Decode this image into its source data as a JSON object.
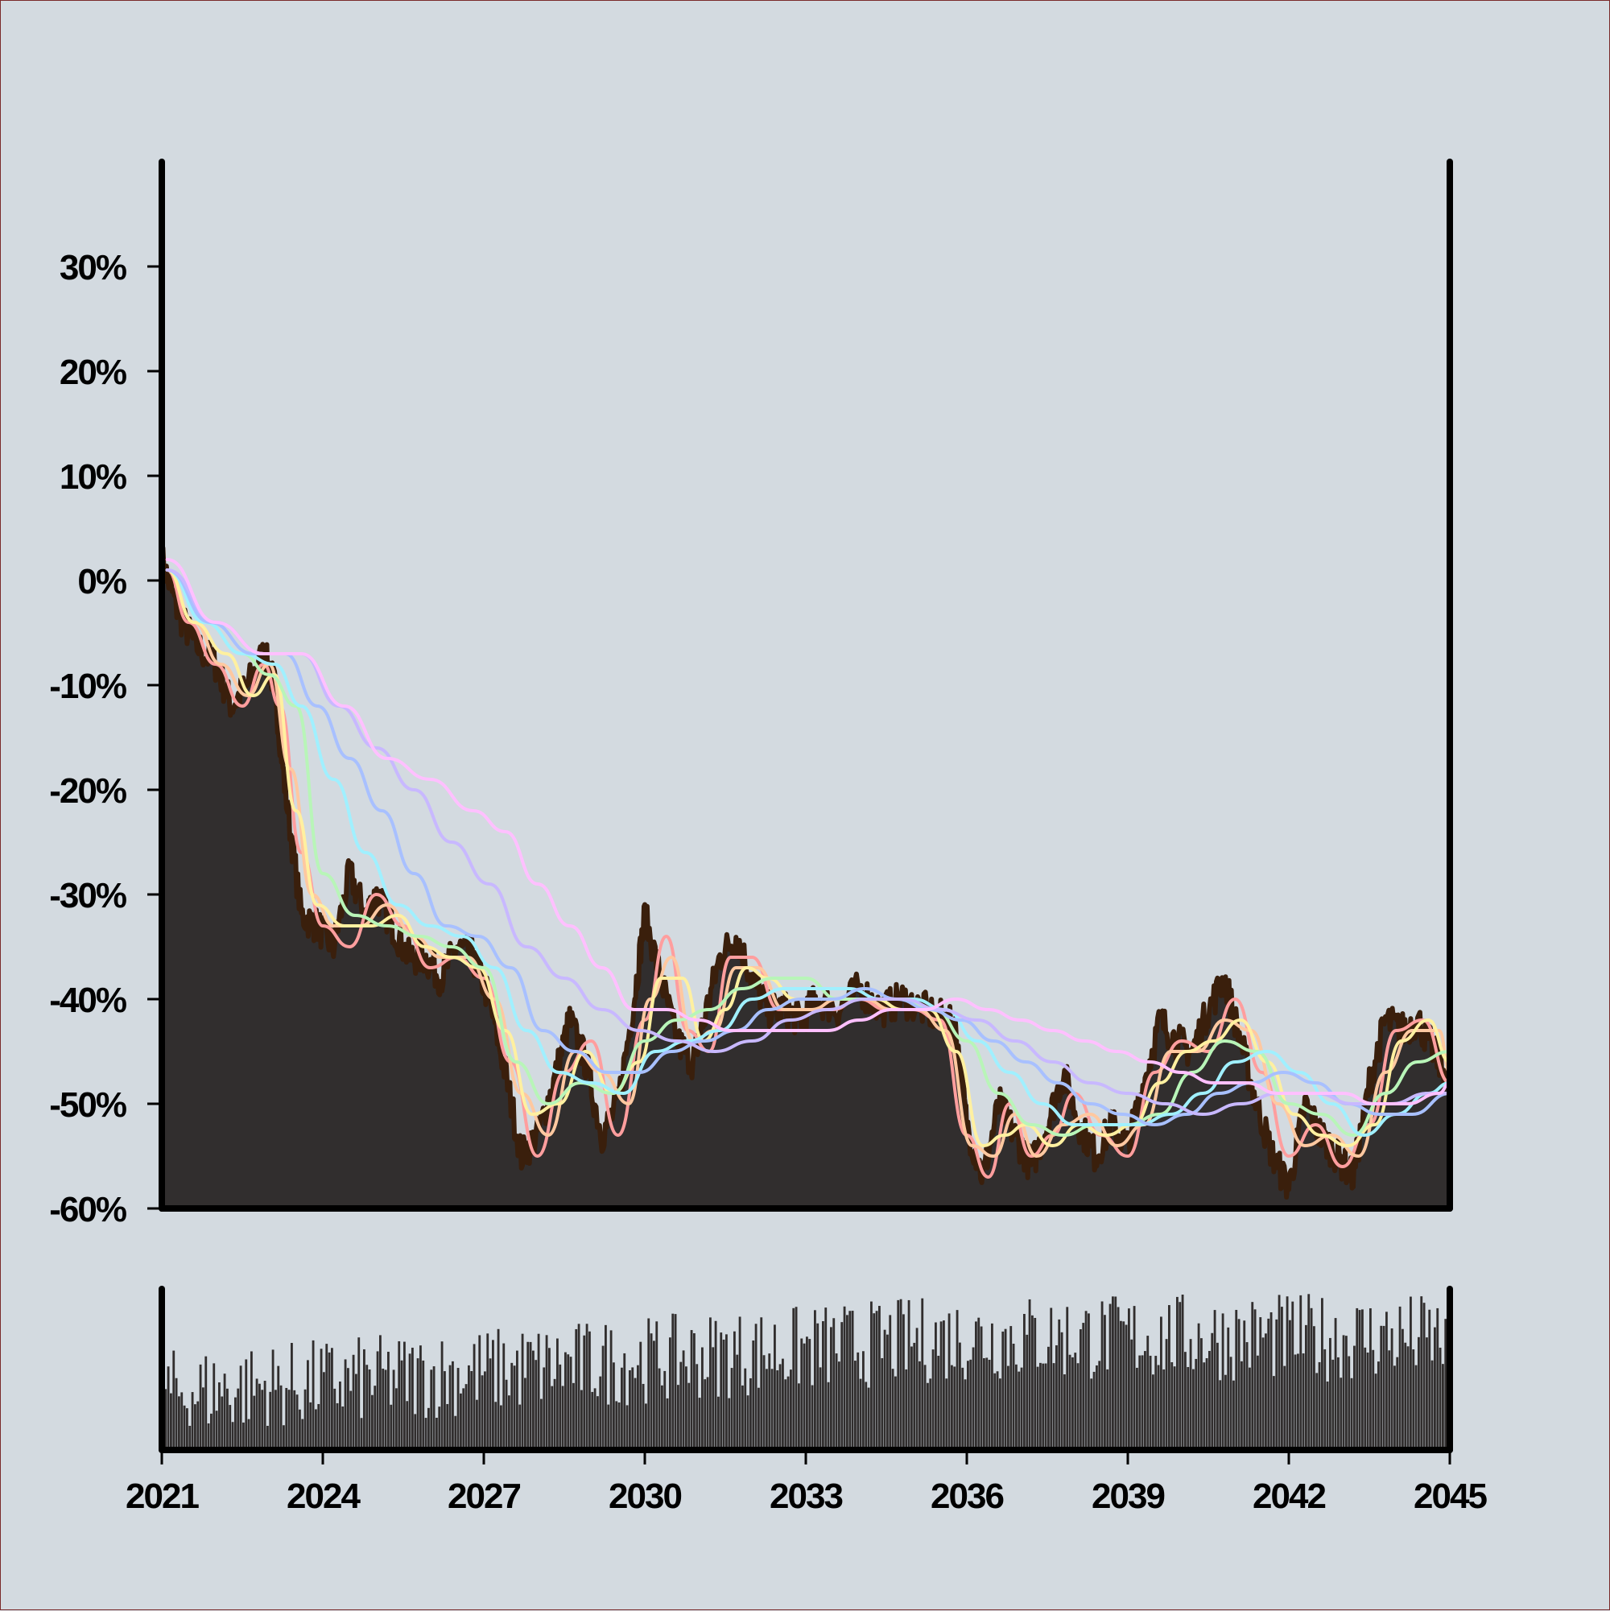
{
  "chart_data": {
    "type": "area",
    "background_color": "#d3dae0",
    "area_color": "#312e2e",
    "outline_color": "#3a1f0c",
    "volume_color": "#312e2e",
    "x_range": [
      2021,
      2045
    ],
    "y_range": [
      -0.6,
      0.4
    ],
    "y_ticks": [
      {
        "value": 0.3,
        "label": "30%"
      },
      {
        "value": 0.2,
        "label": "20%"
      },
      {
        "value": 0.1,
        "label": "10%"
      },
      {
        "value": 0.0,
        "label": "0%"
      },
      {
        "value": -0.1,
        "label": "-10%"
      },
      {
        "value": -0.2,
        "label": "-20%"
      },
      {
        "value": -0.3,
        "label": "-30%"
      },
      {
        "value": -0.4,
        "label": "-40%"
      },
      {
        "value": -0.5,
        "label": "-50%"
      },
      {
        "value": -0.6,
        "label": "-60%"
      }
    ],
    "x_ticks": [
      {
        "value": 2021,
        "label": "2021"
      },
      {
        "value": 2024,
        "label": "2024"
      },
      {
        "value": 2027,
        "label": "2027"
      },
      {
        "value": 2030,
        "label": "2030"
      },
      {
        "value": 2033,
        "label": "2033"
      },
      {
        "value": 2036,
        "label": "2036"
      },
      {
        "value": 2039,
        "label": "2039"
      },
      {
        "value": 2042,
        "label": "2042"
      },
      {
        "value": 2045,
        "label": "2045"
      }
    ],
    "drawdown": {
      "x": [
        2021.0,
        2021.3,
        2021.6,
        2022.0,
        2022.3,
        2022.6,
        2022.9,
        2023.1,
        2023.3,
        2023.6,
        2023.9,
        2024.2,
        2024.5,
        2024.8,
        2025.0,
        2025.3,
        2025.6,
        2025.9,
        2026.2,
        2026.5,
        2026.8,
        2027.1,
        2027.4,
        2027.7,
        2028.0,
        2028.3,
        2028.6,
        2028.9,
        2029.2,
        2029.5,
        2029.8,
        2030.0,
        2030.3,
        2030.6,
        2030.9,
        2031.1,
        2031.4,
        2031.7,
        2032.0,
        2032.3,
        2032.6,
        2032.9,
        2033.2,
        2033.6,
        2034.0,
        2034.4,
        2034.8,
        2035.2,
        2035.6,
        2035.8,
        2036.0,
        2036.3,
        2036.6,
        2036.9,
        2037.2,
        2037.5,
        2037.8,
        2038.1,
        2038.4,
        2038.7,
        2039.0,
        2039.3,
        2039.6,
        2039.9,
        2040.2,
        2040.5,
        2040.8,
        2041.1,
        2041.4,
        2041.7,
        2042.0,
        2042.3,
        2042.6,
        2042.9,
        2043.2,
        2043.5,
        2043.8,
        2044.1,
        2044.4,
        2044.7,
        2045.0
      ],
      "y": [
        0.02,
        -0.03,
        -0.06,
        -0.08,
        -0.12,
        -0.1,
        -0.07,
        -0.1,
        -0.2,
        -0.32,
        -0.33,
        -0.35,
        -0.28,
        -0.32,
        -0.3,
        -0.33,
        -0.36,
        -0.36,
        -0.38,
        -0.35,
        -0.36,
        -0.4,
        -0.47,
        -0.55,
        -0.53,
        -0.48,
        -0.42,
        -0.46,
        -0.53,
        -0.5,
        -0.4,
        -0.32,
        -0.38,
        -0.44,
        -0.46,
        -0.42,
        -0.36,
        -0.34,
        -0.38,
        -0.41,
        -0.41,
        -0.42,
        -0.4,
        -0.41,
        -0.39,
        -0.41,
        -0.4,
        -0.41,
        -0.42,
        -0.43,
        -0.52,
        -0.57,
        -0.5,
        -0.53,
        -0.56,
        -0.52,
        -0.47,
        -0.52,
        -0.55,
        -0.52,
        -0.54,
        -0.48,
        -0.42,
        -0.44,
        -0.45,
        -0.41,
        -0.38,
        -0.44,
        -0.5,
        -0.55,
        -0.58,
        -0.5,
        -0.53,
        -0.55,
        -0.57,
        -0.48,
        -0.42,
        -0.43,
        -0.42,
        -0.45,
        -0.48
      ]
    },
    "moving_averages": [
      {
        "color": "#ff9e9e",
        "x": [
          2021.1,
          2021.5,
          2022.0,
          2022.5,
          2022.9,
          2023.2,
          2023.6,
          2024.0,
          2024.5,
          2025.0,
          2025.5,
          2026.0,
          2026.5,
          2027.0,
          2027.5,
          2028.0,
          2028.5,
          2029.0,
          2029.5,
          2030.0,
          2030.4,
          2030.8,
          2031.2,
          2031.6,
          2032.0,
          2032.5,
          2033.0,
          2033.5,
          2034.0,
          2034.5,
          2035.0,
          2035.5,
          2036.0,
          2036.4,
          2036.8,
          2037.2,
          2037.6,
          2038.0,
          2038.5,
          2039.0,
          2039.5,
          2040.0,
          2040.5,
          2041.0,
          2041.5,
          2042.0,
          2042.5,
          2043.0,
          2043.5,
          2044.0,
          2044.5,
          2045.0
        ],
        "y": [
          0.01,
          -0.04,
          -0.08,
          -0.12,
          -0.08,
          -0.12,
          -0.26,
          -0.33,
          -0.35,
          -0.3,
          -0.33,
          -0.37,
          -0.36,
          -0.38,
          -0.46,
          -0.55,
          -0.47,
          -0.44,
          -0.53,
          -0.42,
          -0.34,
          -0.43,
          -0.45,
          -0.36,
          -0.36,
          -0.41,
          -0.41,
          -0.41,
          -0.4,
          -0.41,
          -0.41,
          -0.42,
          -0.53,
          -0.57,
          -0.5,
          -0.55,
          -0.53,
          -0.49,
          -0.53,
          -0.55,
          -0.47,
          -0.44,
          -0.45,
          -0.4,
          -0.47,
          -0.55,
          -0.52,
          -0.56,
          -0.52,
          -0.43,
          -0.42,
          -0.48
        ]
      },
      {
        "color": "#ffc8a0",
        "x": [
          2021.1,
          2021.6,
          2022.1,
          2022.6,
          2023.0,
          2023.4,
          2023.8,
          2024.2,
          2024.7,
          2025.2,
          2025.7,
          2026.2,
          2026.7,
          2027.2,
          2027.7,
          2028.2,
          2028.7,
          2029.2,
          2029.7,
          2030.1,
          2030.5,
          2030.9,
          2031.3,
          2031.7,
          2032.1,
          2032.6,
          2033.1,
          2033.6,
          2034.1,
          2034.6,
          2035.1,
          2035.6,
          2036.1,
          2036.5,
          2036.9,
          2037.3,
          2037.8,
          2038.3,
          2038.8,
          2039.3,
          2039.8,
          2040.3,
          2040.8,
          2041.3,
          2041.8,
          2042.3,
          2042.8,
          2043.3,
          2043.8,
          2044.3,
          2044.8,
          2045.0
        ],
        "y": [
          0.01,
          -0.04,
          -0.08,
          -0.11,
          -0.08,
          -0.18,
          -0.3,
          -0.33,
          -0.33,
          -0.31,
          -0.34,
          -0.36,
          -0.36,
          -0.4,
          -0.49,
          -0.53,
          -0.45,
          -0.47,
          -0.5,
          -0.4,
          -0.36,
          -0.44,
          -0.43,
          -0.37,
          -0.37,
          -0.41,
          -0.41,
          -0.4,
          -0.4,
          -0.41,
          -0.41,
          -0.43,
          -0.54,
          -0.55,
          -0.51,
          -0.55,
          -0.52,
          -0.51,
          -0.54,
          -0.52,
          -0.45,
          -0.45,
          -0.42,
          -0.43,
          -0.5,
          -0.54,
          -0.53,
          -0.55,
          -0.47,
          -0.43,
          -0.43,
          -0.47
        ]
      },
      {
        "color": "#fff0a0",
        "x": [
          2021.1,
          2021.6,
          2022.2,
          2022.7,
          2023.1,
          2023.5,
          2023.9,
          2024.4,
          2024.9,
          2025.4,
          2025.9,
          2026.4,
          2026.9,
          2027.4,
          2027.9,
          2028.4,
          2028.9,
          2029.4,
          2029.9,
          2030.3,
          2030.7,
          2031.1,
          2031.5,
          2031.9,
          2032.3,
          2032.8,
          2033.3,
          2033.8,
          2034.3,
          2034.8,
          2035.3,
          2035.8,
          2036.3,
          2036.7,
          2037.1,
          2037.6,
          2038.1,
          2038.6,
          2039.1,
          2039.6,
          2040.1,
          2040.6,
          2041.1,
          2041.6,
          2042.1,
          2042.6,
          2043.1,
          2043.6,
          2044.1,
          2044.6,
          2045.0
        ],
        "y": [
          0.01,
          -0.04,
          -0.07,
          -0.11,
          -0.09,
          -0.22,
          -0.31,
          -0.33,
          -0.33,
          -0.32,
          -0.35,
          -0.36,
          -0.37,
          -0.43,
          -0.51,
          -0.5,
          -0.45,
          -0.49,
          -0.46,
          -0.38,
          -0.38,
          -0.44,
          -0.41,
          -0.37,
          -0.38,
          -0.4,
          -0.4,
          -0.4,
          -0.4,
          -0.41,
          -0.41,
          -0.45,
          -0.54,
          -0.53,
          -0.52,
          -0.54,
          -0.52,
          -0.53,
          -0.52,
          -0.48,
          -0.45,
          -0.44,
          -0.42,
          -0.46,
          -0.51,
          -0.53,
          -0.54,
          -0.52,
          -0.44,
          -0.42,
          -0.46
        ]
      },
      {
        "color": "#b8f5b8",
        "x": [
          2021.1,
          2021.8,
          2022.5,
          2023.0,
          2023.5,
          2024.0,
          2024.6,
          2025.2,
          2025.8,
          2026.4,
          2027.0,
          2027.6,
          2028.2,
          2028.8,
          2029.4,
          2030.0,
          2030.6,
          2031.2,
          2031.8,
          2032.4,
          2033.0,
          2033.6,
          2034.2,
          2034.8,
          2035.4,
          2036.0,
          2036.6,
          2037.2,
          2037.8,
          2038.4,
          2039.0,
          2039.6,
          2040.2,
          2040.8,
          2041.4,
          2042.0,
          2042.6,
          2043.2,
          2043.8,
          2044.4,
          2045.0
        ],
        "y": [
          0.01,
          -0.04,
          -0.07,
          -0.09,
          -0.12,
          -0.28,
          -0.32,
          -0.33,
          -0.34,
          -0.35,
          -0.37,
          -0.46,
          -0.5,
          -0.48,
          -0.49,
          -0.44,
          -0.42,
          -0.41,
          -0.39,
          -0.38,
          -0.38,
          -0.4,
          -0.4,
          -0.4,
          -0.41,
          -0.44,
          -0.49,
          -0.52,
          -0.53,
          -0.52,
          -0.52,
          -0.51,
          -0.47,
          -0.44,
          -0.45,
          -0.5,
          -0.51,
          -0.53,
          -0.49,
          -0.46,
          -0.45
        ]
      },
      {
        "color": "#a0f0ff",
        "x": [
          2021.1,
          2021.8,
          2022.5,
          2023.1,
          2023.6,
          2024.2,
          2024.8,
          2025.4,
          2026.0,
          2026.6,
          2027.2,
          2027.8,
          2028.4,
          2029.0,
          2029.6,
          2030.2,
          2030.8,
          2031.4,
          2032.0,
          2032.6,
          2033.2,
          2033.8,
          2034.4,
          2035.0,
          2035.6,
          2036.2,
          2036.8,
          2037.4,
          2038.0,
          2038.6,
          2039.2,
          2039.8,
          2040.4,
          2041.0,
          2041.6,
          2042.2,
          2042.8,
          2043.4,
          2044.0,
          2044.6,
          2045.0
        ],
        "y": [
          0.01,
          -0.04,
          -0.07,
          -0.08,
          -0.12,
          -0.19,
          -0.26,
          -0.31,
          -0.33,
          -0.34,
          -0.37,
          -0.43,
          -0.47,
          -0.48,
          -0.49,
          -0.45,
          -0.44,
          -0.43,
          -0.4,
          -0.39,
          -0.39,
          -0.39,
          -0.4,
          -0.4,
          -0.41,
          -0.44,
          -0.47,
          -0.5,
          -0.52,
          -0.52,
          -0.52,
          -0.51,
          -0.49,
          -0.46,
          -0.45,
          -0.47,
          -0.5,
          -0.53,
          -0.51,
          -0.49,
          -0.48
        ]
      },
      {
        "color": "#a8c0ff",
        "x": [
          2021.1,
          2021.9,
          2022.7,
          2023.3,
          2023.9,
          2024.5,
          2025.1,
          2025.7,
          2026.3,
          2026.9,
          2027.5,
          2028.1,
          2028.7,
          2029.3,
          2029.9,
          2030.5,
          2031.1,
          2031.7,
          2032.3,
          2032.9,
          2033.5,
          2034.1,
          2034.7,
          2035.3,
          2035.9,
          2036.5,
          2037.1,
          2037.7,
          2038.3,
          2038.9,
          2039.5,
          2040.1,
          2040.7,
          2041.3,
          2041.9,
          2042.5,
          2043.1,
          2043.7,
          2044.3,
          2045.0
        ],
        "y": [
          0.01,
          -0.04,
          -0.07,
          -0.07,
          -0.12,
          -0.17,
          -0.22,
          -0.28,
          -0.33,
          -0.34,
          -0.37,
          -0.43,
          -0.45,
          -0.47,
          -0.47,
          -0.45,
          -0.44,
          -0.43,
          -0.41,
          -0.4,
          -0.4,
          -0.39,
          -0.4,
          -0.41,
          -0.42,
          -0.44,
          -0.46,
          -0.48,
          -0.5,
          -0.51,
          -0.52,
          -0.51,
          -0.49,
          -0.48,
          -0.47,
          -0.48,
          -0.5,
          -0.51,
          -0.51,
          -0.49
        ]
      },
      {
        "color": "#c8b8ff",
        "x": [
          2021.1,
          2022.0,
          2022.9,
          2023.6,
          2024.3,
          2025.0,
          2025.7,
          2026.4,
          2027.1,
          2027.8,
          2028.5,
          2029.2,
          2029.9,
          2030.6,
          2031.3,
          2032.0,
          2032.7,
          2033.4,
          2034.1,
          2034.8,
          2035.5,
          2036.2,
          2036.9,
          2037.6,
          2038.3,
          2039.0,
          2039.7,
          2040.4,
          2041.1,
          2041.8,
          2042.5,
          2043.2,
          2043.9,
          2044.6,
          2045.0
        ],
        "y": [
          0.01,
          -0.04,
          -0.07,
          -0.07,
          -0.12,
          -0.16,
          -0.2,
          -0.25,
          -0.29,
          -0.35,
          -0.38,
          -0.41,
          -0.43,
          -0.44,
          -0.45,
          -0.44,
          -0.42,
          -0.41,
          -0.4,
          -0.4,
          -0.41,
          -0.42,
          -0.44,
          -0.46,
          -0.48,
          -0.49,
          -0.5,
          -0.51,
          -0.5,
          -0.49,
          -0.49,
          -0.5,
          -0.5,
          -0.49,
          -0.49
        ]
      },
      {
        "color": "#ffc0ff",
        "x": [
          2021.1,
          2022.0,
          2022.9,
          2023.6,
          2024.4,
          2025.2,
          2026.0,
          2026.8,
          2027.4,
          2028.0,
          2028.6,
          2029.2,
          2029.8,
          2030.4,
          2031.0,
          2031.6,
          2032.2,
          2032.8,
          2033.4,
          2034.0,
          2034.6,
          2035.2,
          2035.8,
          2036.4,
          2037.0,
          2037.6,
          2038.2,
          2038.8,
          2039.4,
          2040.0,
          2040.6,
          2041.2,
          2041.8,
          2042.4,
          2043.0,
          2043.6,
          2044.2,
          2044.8,
          2045.0
        ],
        "y": [
          0.02,
          -0.04,
          -0.07,
          -0.07,
          -0.12,
          -0.17,
          -0.19,
          -0.22,
          -0.24,
          -0.29,
          -0.33,
          -0.37,
          -0.41,
          -0.41,
          -0.42,
          -0.43,
          -0.43,
          -0.43,
          -0.43,
          -0.42,
          -0.41,
          -0.41,
          -0.4,
          -0.41,
          -0.42,
          -0.43,
          -0.44,
          -0.45,
          -0.46,
          -0.47,
          -0.48,
          -0.48,
          -0.49,
          -0.49,
          -0.49,
          -0.5,
          -0.5,
          -0.49,
          -0.48
        ]
      }
    ],
    "volume": {
      "note_range": [
        0,
        1
      ],
      "bars_per_year": 20,
      "seed": 7,
      "min": 0.15,
      "max": 1.0
    }
  }
}
